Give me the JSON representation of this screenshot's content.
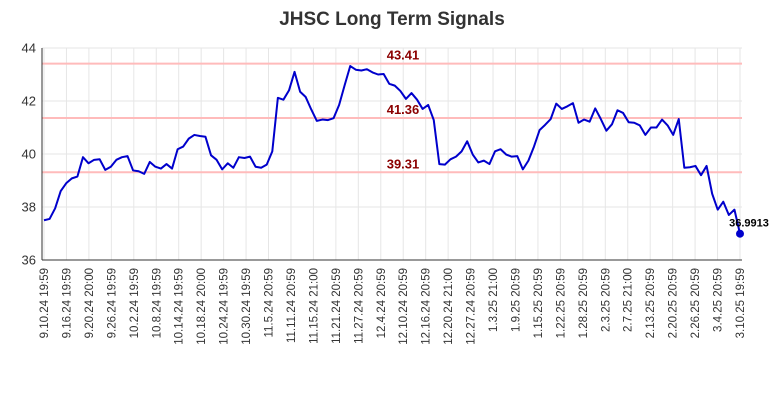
{
  "chart_data": {
    "type": "line",
    "title": "JHSC Long Term Signals",
    "xlabel": "",
    "ylabel": "",
    "ylim": [
      36,
      44
    ],
    "yticks": [
      36,
      38,
      40,
      42,
      44
    ],
    "grid": true,
    "x_tick_labels": [
      "9.10.24 19:59",
      "9.16.24 19:59",
      "9.20.24 20:00",
      "9.26.24 19:59",
      "10.2.24 19:59",
      "10.8.24 19:59",
      "10.14.24 19:59",
      "10.18.24 20:00",
      "10.24.24 19:59",
      "10.30.24 19:59",
      "11.5.24 20:59",
      "11.11.24 20:59",
      "11.15.24 21:00",
      "11.21.24 20:59",
      "11.27.24 20:59",
      "12.4.24 20:59",
      "12.10.24 20:59",
      "12.16.24 20:59",
      "12.20.24 21:00",
      "12.27.24 20:59",
      "1.3.25 21:00",
      "1.9.25 20:59",
      "1.15.25 20:59",
      "1.22.25 20:59",
      "1.28.25 20:59",
      "2.3.25 20:59",
      "2.7.25 21:00",
      "2.13.25 20:59",
      "2.20.25 20:59",
      "2.26.25 20:59",
      "3.4.25 20:59",
      "3.10.25 19:59"
    ],
    "reference_lines": [
      {
        "value": 43.41,
        "label": "43.41"
      },
      {
        "value": 41.36,
        "label": "41.36"
      },
      {
        "value": 39.31,
        "label": "39.31"
      }
    ],
    "series": [
      {
        "values": [
          37.5,
          37.55,
          37.95,
          38.6,
          38.9,
          39.08,
          39.15,
          39.88,
          39.65,
          39.78,
          39.8,
          39.4,
          39.52,
          39.78,
          39.88,
          39.92,
          39.38,
          39.35,
          39.25,
          39.7,
          39.52,
          39.45,
          39.62,
          39.45,
          40.18,
          40.28,
          40.58,
          40.72,
          40.68,
          40.65,
          39.95,
          39.78,
          39.42,
          39.65,
          39.48,
          39.88,
          39.85,
          39.9,
          39.52,
          39.48,
          39.6,
          40.1,
          42.12,
          42.05,
          42.4,
          43.1,
          42.35,
          42.15,
          41.68,
          41.25,
          41.3,
          41.28,
          41.35,
          41.85,
          42.6,
          43.32,
          43.18,
          43.15,
          43.2,
          43.08,
          43.0,
          43.02,
          42.65,
          42.58,
          42.38,
          42.08,
          42.3,
          42.05,
          41.7,
          41.85,
          41.28,
          39.62,
          39.6,
          39.8,
          39.9,
          40.1,
          40.48,
          39.98,
          39.68,
          39.75,
          39.62,
          40.1,
          40.18,
          39.98,
          39.9,
          39.92,
          39.42,
          39.75,
          40.28,
          40.9,
          41.1,
          41.32,
          41.9,
          41.7,
          41.8,
          41.92,
          41.18,
          41.3,
          41.22,
          41.72,
          41.32,
          40.88,
          41.12,
          41.65,
          41.55,
          41.2,
          41.18,
          41.08,
          40.72,
          41.0,
          41.0,
          41.3,
          41.08,
          40.72,
          41.32,
          39.48,
          39.5,
          39.55,
          39.2,
          39.55,
          38.5,
          37.9,
          38.2,
          37.7,
          37.9,
          36.9913
        ]
      }
    ],
    "last_value_label": "36.9913"
  },
  "colors": {
    "line": "#0000cc",
    "reference_line": "#ffbbbb",
    "reference_label": "#8b0000",
    "grid": "#e6e6e6",
    "axis": "#333333"
  }
}
